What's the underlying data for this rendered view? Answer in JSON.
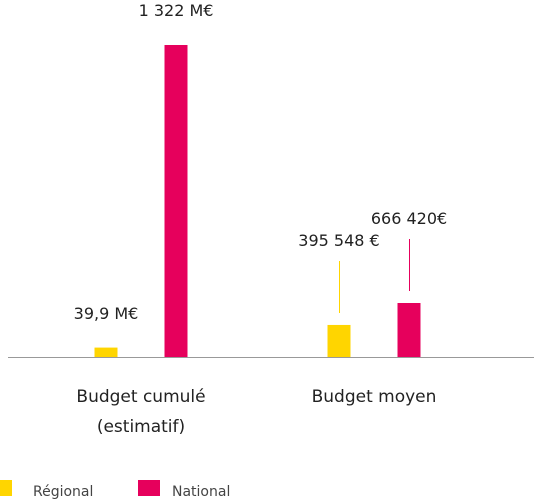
{
  "chart_data": {
    "type": "bar",
    "categories": [
      "Budget cumulé (estimatif)",
      "Budget moyen"
    ],
    "series": [
      {
        "name": "Régional",
        "color": "#ffd500",
        "values": [
          39.9,
          395548
        ],
        "value_labels": [
          "39,9 M€",
          "395 548 €"
        ]
      },
      {
        "name": "National",
        "color": "#e6005c",
        "values": [
          1322,
          666420
        ],
        "value_labels": [
          "1 322 M€",
          "666 420€"
        ]
      }
    ]
  }
}
